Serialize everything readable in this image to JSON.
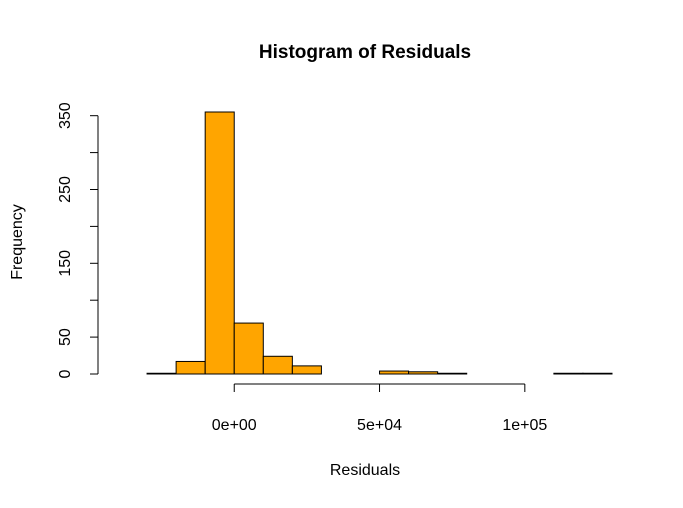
{
  "chart_data": {
    "type": "bar",
    "title": "Histogram of Residuals",
    "xlabel": "Residuals",
    "ylabel": "Frequency",
    "bin_edges": [
      -30000,
      -20000,
      -10000,
      0,
      10000,
      20000,
      30000,
      40000,
      50000,
      60000,
      70000,
      80000,
      90000,
      100000,
      110000,
      120000,
      130000
    ],
    "values": [
      1,
      17,
      355,
      69,
      24,
      11,
      0,
      0,
      4,
      3,
      1,
      0,
      0,
      0,
      1,
      1
    ],
    "xlim": [
      -40000,
      130000
    ],
    "ylim": [
      0,
      355
    ],
    "x_ticks": [
      {
        "value": 0,
        "label": "0e+00"
      },
      {
        "value": 50000,
        "label": "5e+04"
      },
      {
        "value": 100000,
        "label": "1e+05"
      }
    ],
    "y_ticks": [
      {
        "value": 0,
        "label": "0"
      },
      {
        "value": 50,
        "label": "50"
      },
      {
        "value": 100,
        "label": ""
      },
      {
        "value": 150,
        "label": "150"
      },
      {
        "value": 200,
        "label": ""
      },
      {
        "value": 250,
        "label": "250"
      },
      {
        "value": 300,
        "label": ""
      },
      {
        "value": 350,
        "label": "350"
      }
    ],
    "grid": false,
    "bar_color": "#FFA500",
    "edge_color": "#000000"
  }
}
